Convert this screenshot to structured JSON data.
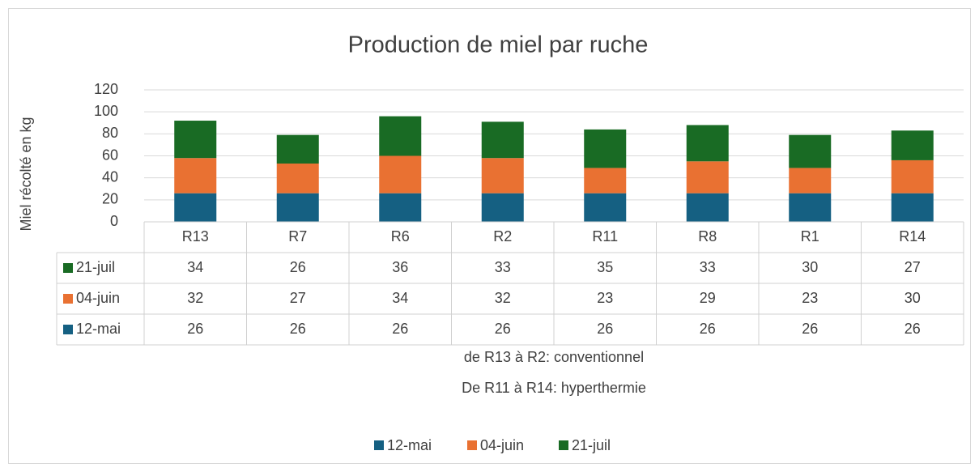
{
  "chart_data": {
    "type": "bar",
    "stacked": true,
    "title": "Production de miel par ruche",
    "y_label": "Miel récolté en kg",
    "x_label": [
      "de R13 à R2: conventionnel",
      "De R11 à R14: hyperthermie"
    ],
    "categories": [
      "R13",
      "R7",
      "R6",
      "R2",
      "R11",
      "R8",
      "R1",
      "R14"
    ],
    "series": [
      {
        "name": "12-mai",
        "color": "#156082",
        "values": [
          26,
          26,
          26,
          26,
          26,
          26,
          26,
          26
        ]
      },
      {
        "name": "04-juin",
        "color": "#e97132",
        "values": [
          32,
          27,
          34,
          32,
          23,
          29,
          23,
          30
        ]
      },
      {
        "name": "21-juil",
        "color": "#196b24",
        "values": [
          34,
          26,
          36,
          33,
          35,
          33,
          30,
          27
        ]
      }
    ],
    "ylim": [
      0,
      120
    ],
    "yticks": [
      0,
      20,
      40,
      60,
      80,
      100,
      120
    ],
    "grid": true,
    "data_table": true,
    "legend": "bottom"
  }
}
